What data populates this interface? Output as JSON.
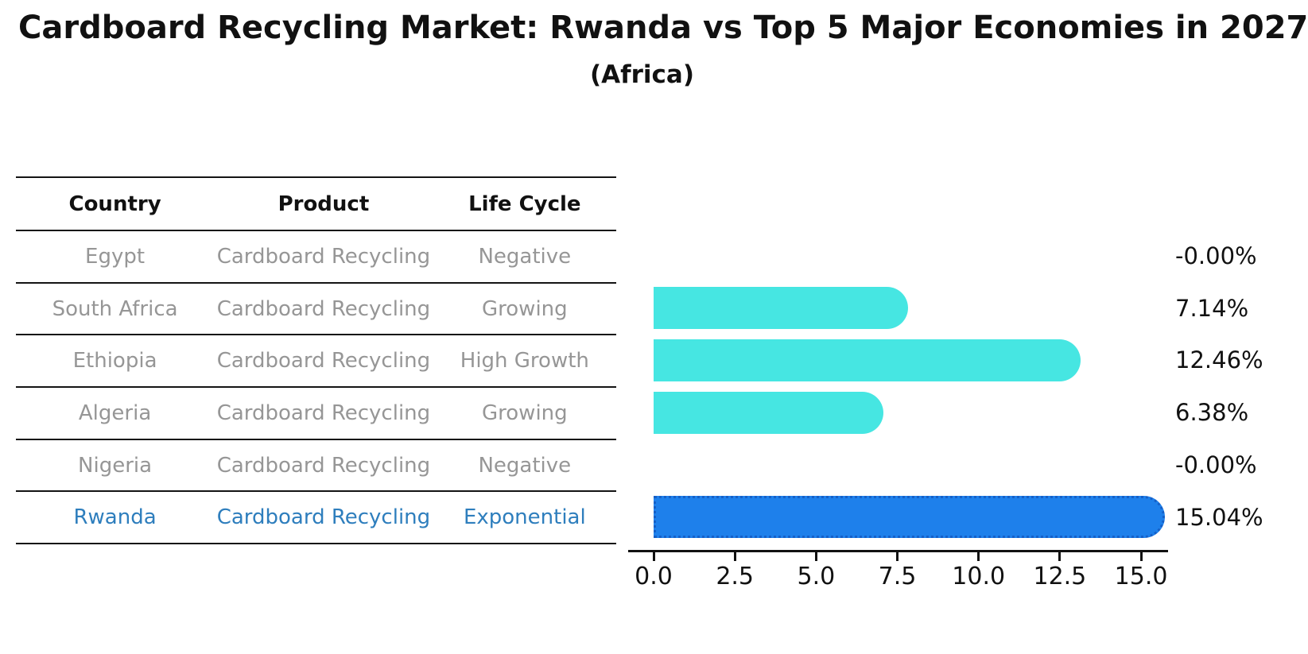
{
  "header": {
    "title": "Cardboard Recycling Market: Rwanda vs Top 5 Major Economies in 2027",
    "subtitle": "(Africa)"
  },
  "table": {
    "columns": [
      "Country",
      "Product",
      "Life Cycle"
    ],
    "rows": [
      {
        "country": "Egypt",
        "product": "Cardboard Recycling",
        "life_cycle": "Negative",
        "highlight": false
      },
      {
        "country": "South Africa",
        "product": "Cardboard Recycling",
        "life_cycle": "Growing",
        "highlight": false
      },
      {
        "country": "Ethiopia",
        "product": "Cardboard Recycling",
        "life_cycle": "High Growth",
        "highlight": false
      },
      {
        "country": "Algeria",
        "product": "Cardboard Recycling",
        "life_cycle": "Growing",
        "highlight": false
      },
      {
        "country": "Nigeria",
        "product": "Cardboard Recycling",
        "life_cycle": "Negative",
        "highlight": false
      },
      {
        "country": "Rwanda",
        "product": "Cardboard Recycling",
        "life_cycle": "Exponential",
        "highlight": true
      }
    ]
  },
  "chart_data": {
    "type": "bar",
    "orientation": "horizontal",
    "title": "Cardboard Recycling Market: Rwanda vs Top 5 Major Economies in 2027",
    "subtitle": "(Africa)",
    "categories": [
      "Egypt",
      "South Africa",
      "Ethiopia",
      "Algeria",
      "Nigeria",
      "Rwanda"
    ],
    "values": [
      -0.0,
      7.14,
      12.46,
      6.38,
      -0.0,
      15.04
    ],
    "value_labels": [
      "-0.00%",
      "7.14%",
      "12.46%",
      "6.38%",
      "-0.00%",
      "15.04%"
    ],
    "x_ticks": [
      0.0,
      2.5,
      5.0,
      7.5,
      10.0,
      12.5,
      15.0
    ],
    "x_tick_labels": [
      "0.0",
      "2.5",
      "5.0",
      "7.5",
      "10.0",
      "12.5",
      "15.0"
    ],
    "xlim": [
      -0.8,
      15.85
    ],
    "xlabel": "",
    "ylabel": "",
    "grid": false,
    "legend": false,
    "bar_color": "#46e6e2",
    "highlight_index": 5,
    "highlight_color": "#1e80eb",
    "highlight_border_color": "#1560c8",
    "highlight_text_color": "#2e7ebd"
  }
}
